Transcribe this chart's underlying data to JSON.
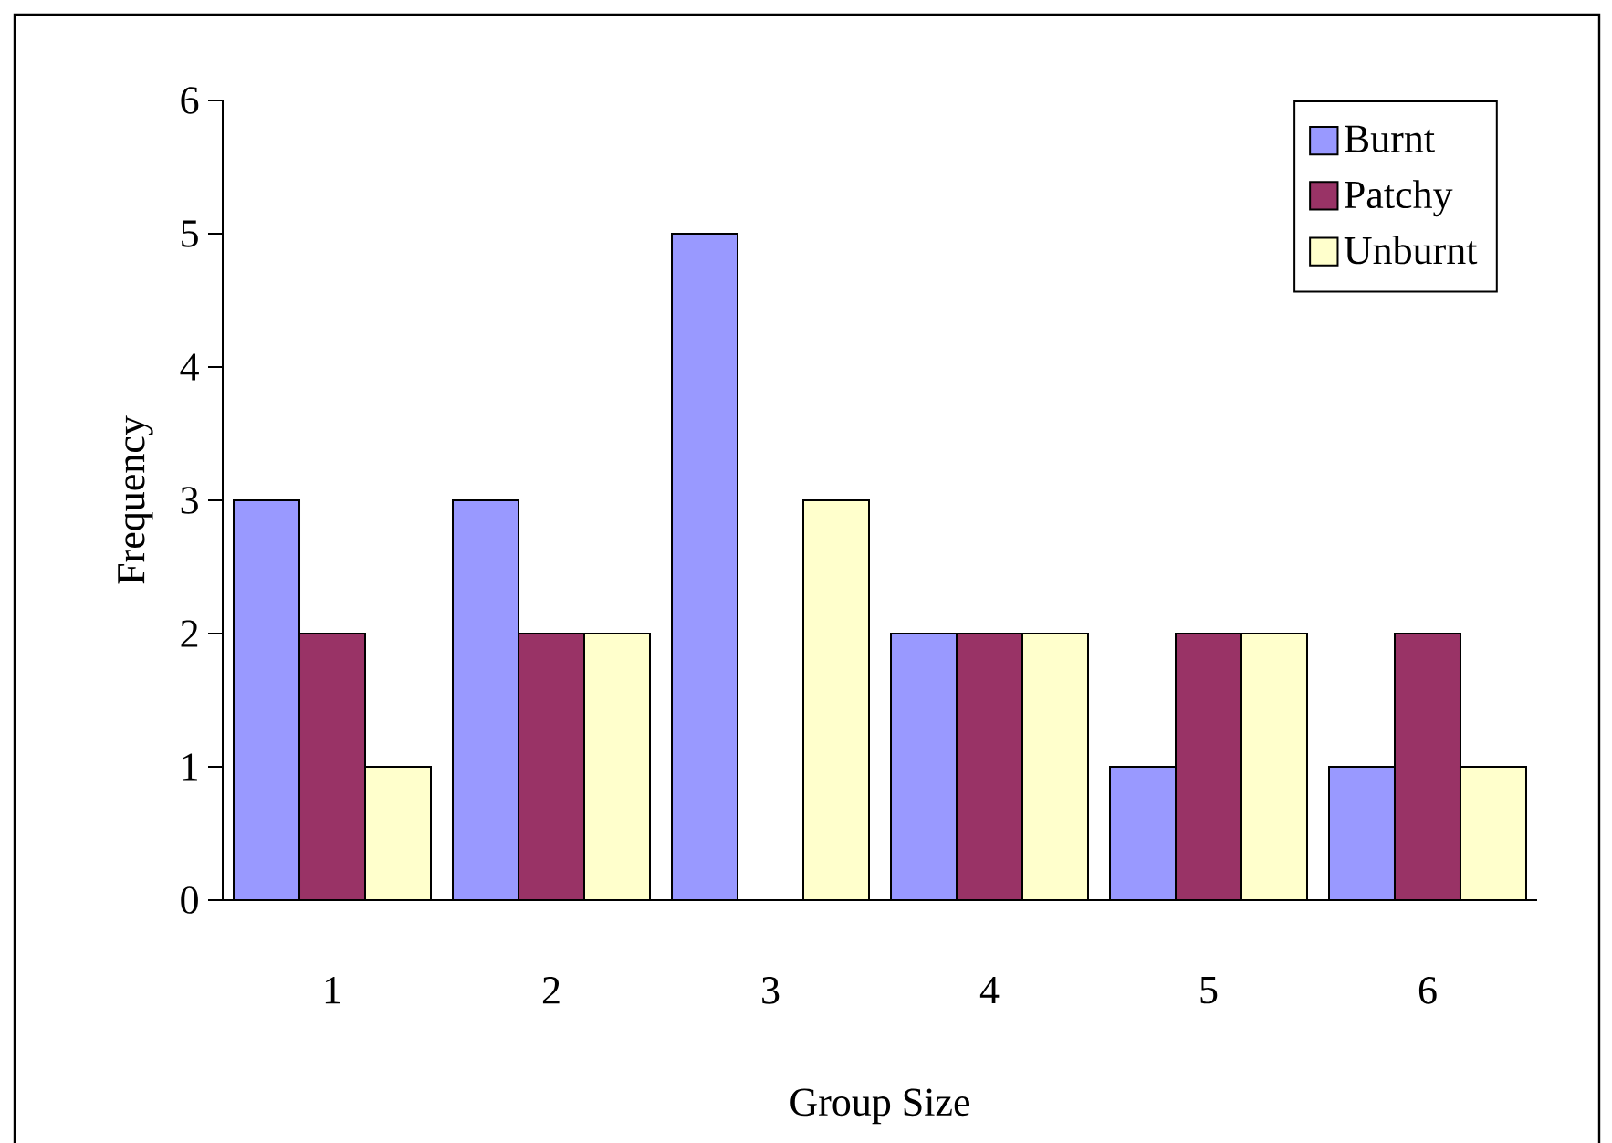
{
  "chart_data": {
    "type": "bar",
    "xlabel": "Group Size",
    "ylabel": "Frequency",
    "categories": [
      "1",
      "2",
      "3",
      "4",
      "5",
      "6"
    ],
    "series": [
      {
        "name": "Burnt",
        "color": "#9999ff",
        "values": [
          3,
          3,
          5,
          2,
          1,
          1
        ]
      },
      {
        "name": "Patchy",
        "color": "#993366",
        "values": [
          2,
          2,
          0,
          2,
          2,
          2
        ]
      },
      {
        "name": "Unburnt",
        "color": "#ffffcc",
        "values": [
          1,
          2,
          3,
          2,
          2,
          1
        ]
      }
    ],
    "ylim": [
      0,
      6
    ],
    "yticks": [
      0,
      1,
      2,
      3,
      4,
      5,
      6
    ],
    "legend": "top right"
  }
}
